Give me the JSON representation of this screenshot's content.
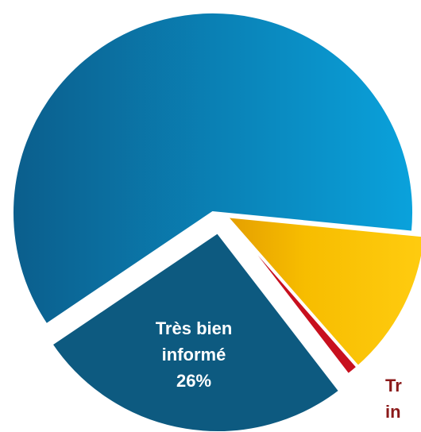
{
  "chart_data": {
    "type": "pie",
    "categories": [
      null,
      null,
      [
        "Tr",
        "in"
      ],
      [
        "Très bien",
        "informé"
      ]
    ],
    "values": [
      61,
      12,
      1,
      26
    ],
    "value_labels": [
      null,
      null,
      null,
      "26%"
    ],
    "colors": [
      "#0a86bf",
      "#f7bd00",
      "#c8101e",
      "#0d5a80"
    ]
  }
}
